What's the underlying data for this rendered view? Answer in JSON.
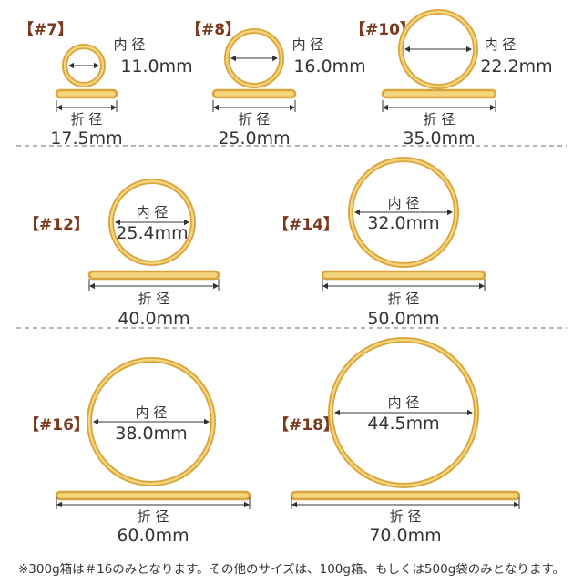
{
  "colors": {
    "band": "#d9a43b",
    "band_fill": "#f5d57c",
    "tag_text": "#7a3a1e",
    "text": "#333333",
    "divider": "#888888"
  },
  "inner_label": "内 径",
  "fold_label": "折 径",
  "items": [
    {
      "tag": "【#7】",
      "inner": "11.0mm",
      "fold": "17.5mm"
    },
    {
      "tag": "【#8】",
      "inner": "16.0mm",
      "fold": "25.0mm"
    },
    {
      "tag": "【#10】",
      "inner": "22.2mm",
      "fold": "35.0mm"
    },
    {
      "tag": "【#12】",
      "inner": "25.4mm",
      "fold": "40.0mm"
    },
    {
      "tag": "【#14】",
      "inner": "32.0mm",
      "fold": "50.0mm"
    },
    {
      "tag": "【#16】",
      "inner": "38.0mm",
      "fold": "60.0mm"
    },
    {
      "tag": "【#18】",
      "inner": "44.5mm",
      "fold": "70.0mm"
    }
  ],
  "footnote": "※300g箱は＃16のみとなります。その他のサイズは、100g箱、もしくは500g袋のみとなります。"
}
